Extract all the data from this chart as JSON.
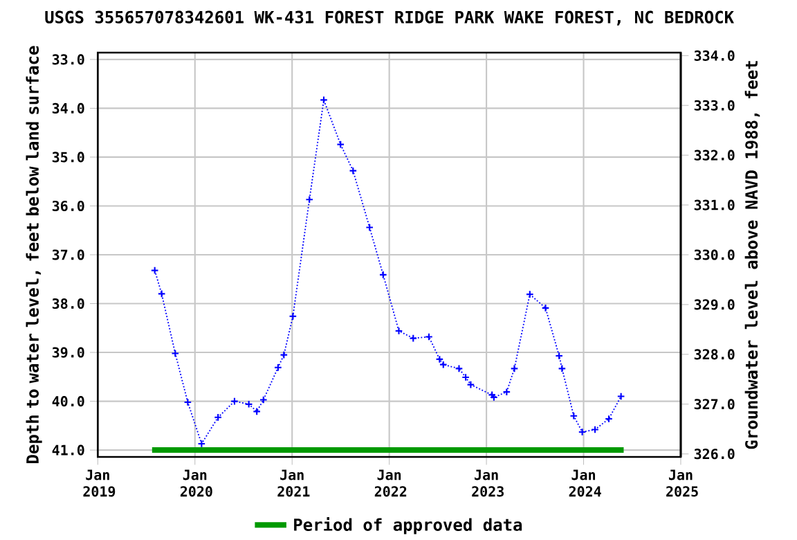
{
  "chart_data": {
    "type": "line",
    "title": "USGS 355657078342601 WK-431 FOREST RIDGE PARK WAKE FOREST, NC BEDROCK",
    "xlabel": null,
    "ylabel": "Depth to water level, feet below land surface",
    "y2label": "Groundwater level above NAVD 1988, feet",
    "series": [
      {
        "color": "#0000ff",
        "x": [
          "2019-08-03",
          "2019-08-29",
          "2019-10-19",
          "2019-12-05",
          "2020-01-26",
          "2020-03-28",
          "2020-05-29",
          "2020-07-22",
          "2020-08-21",
          "2020-09-15",
          "2020-11-09",
          "2020-12-01",
          "2021-01-04",
          "2021-03-07",
          "2021-04-30",
          "2021-07-02",
          "2021-08-18",
          "2021-10-19",
          "2021-12-09",
          "2022-02-06",
          "2022-04-01",
          "2022-05-30",
          "2022-07-09",
          "2022-07-23",
          "2022-09-20",
          "2022-10-15",
          "2022-11-03",
          "2023-01-22",
          "2023-01-29",
          "2023-03-18",
          "2023-04-16",
          "2023-06-13",
          "2023-08-11",
          "2023-10-01",
          "2023-10-12",
          "2023-11-25",
          "2023-12-27",
          "2024-02-13",
          "2024-04-05",
          "2024-05-21"
        ],
        "values": [
          37.32,
          37.8,
          39.02,
          40.02,
          40.87,
          40.33,
          40.0,
          40.06,
          40.21,
          39.97,
          39.31,
          39.05,
          38.26,
          35.87,
          33.83,
          34.74,
          35.28,
          36.44,
          37.41,
          38.56,
          38.71,
          38.68,
          39.14,
          39.25,
          39.33,
          39.51,
          39.66,
          39.87,
          39.92,
          39.81,
          39.33,
          37.81,
          38.09,
          39.07,
          39.33,
          40.3,
          40.63,
          40.58,
          40.36,
          39.9
        ]
      },
      {
        "name": "Period of approved data",
        "color": "#009900",
        "line_style": "solid",
        "marker": "none",
        "x": [
          "2019-07-24",
          "2024-05-31"
        ],
        "values": [
          41.0,
          41.0
        ]
      }
    ],
    "xlim": [
      "2019-01-01",
      "2025-01-01"
    ],
    "xticks": [
      {
        "value": "2019-01-01",
        "label": "Jan 2019"
      },
      {
        "value": "2020-01-01",
        "label": "Jan 2020"
      },
      {
        "value": "2021-01-01",
        "label": "Jan 2021"
      },
      {
        "value": "2022-01-01",
        "label": "Jan 2022"
      },
      {
        "value": "2023-01-01",
        "label": "Jan 2023"
      },
      {
        "value": "2024-01-01",
        "label": "Jan 2024"
      },
      {
        "value": "2025-01-01",
        "label": "Jan 2025"
      }
    ],
    "ylim": [
      41.14,
      32.86
    ],
    "yticks": [
      {
        "value": 33,
        "label": "33.0"
      },
      {
        "value": 34,
        "label": "34.0"
      },
      {
        "value": 35,
        "label": "35.0"
      },
      {
        "value": 36,
        "label": "36.0"
      },
      {
        "value": 37,
        "label": "37.0"
      },
      {
        "value": 38,
        "label": "38.0"
      },
      {
        "value": 39,
        "label": "39.0"
      },
      {
        "value": 40,
        "label": "40.0"
      },
      {
        "value": 41,
        "label": "41.0"
      }
    ],
    "y2lim": [
      325.94,
      334.06
    ],
    "y2ticks": [
      {
        "value": 326,
        "label": "326.0"
      },
      {
        "value": 327,
        "label": "327.0"
      },
      {
        "value": 328,
        "label": "328.0"
      },
      {
        "value": 329,
        "label": "329.0"
      },
      {
        "value": 330,
        "label": "330.0"
      },
      {
        "value": 331,
        "label": "331.0"
      },
      {
        "value": 332,
        "label": "332.0"
      },
      {
        "value": 333,
        "label": "333.0"
      },
      {
        "value": 334,
        "label": "334.0"
      }
    ],
    "grid": true,
    "legend": "bottom",
    "marker": "cross",
    "line_style": "dotted"
  }
}
